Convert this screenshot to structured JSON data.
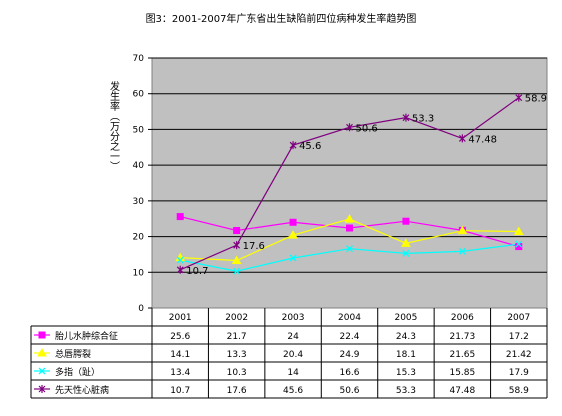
{
  "chart_data": {
    "type": "line",
    "title": "图3：2001-2007年广东省出生缺陷前四位病种发生率趋势图",
    "ylabel": "发生率（万分之一）",
    "xlabel": "",
    "ylim": [
      0,
      70
    ],
    "yticks": [
      "0",
      "10",
      "20",
      "30",
      "40",
      "50",
      "60",
      "70"
    ],
    "grid": true,
    "legend_position": "data-table",
    "categories": [
      "2001",
      "2002",
      "2003",
      "2004",
      "2005",
      "2006",
      "2007"
    ],
    "series": [
      {
        "name": "胎儿水肿综合征",
        "color": "#ff00ff",
        "marker": "square",
        "values": [
          25.6,
          21.7,
          24,
          22.4,
          24.3,
          21.73,
          17.2
        ],
        "labels": [
          "25.6",
          "21.7",
          "24",
          "22.4",
          "24.3",
          "21.73",
          "17.2"
        ]
      },
      {
        "name": "总唇腭裂",
        "color": "#ffff00",
        "marker": "triangle",
        "values": [
          14.1,
          13.3,
          20.4,
          24.9,
          18.1,
          21.65,
          21.42
        ],
        "labels": [
          "14.1",
          "13.3",
          "20.4",
          "24.9",
          "18.1",
          "21.65",
          "21.42"
        ]
      },
      {
        "name": "多指（趾）",
        "color": "#00ffff",
        "marker": "x",
        "values": [
          13.4,
          10.3,
          14,
          16.6,
          15.3,
          15.85,
          17.9
        ],
        "labels": [
          "13.4",
          "10.3",
          "14",
          "16.6",
          "15.3",
          "15.85",
          "17.9"
        ]
      },
      {
        "name": "先天性心脏病",
        "color": "#800080",
        "marker": "star",
        "values": [
          10.7,
          17.6,
          45.6,
          50.6,
          53.3,
          47.48,
          58.9
        ],
        "labels": [
          "10.7",
          "17.6",
          "45.6",
          "50.6",
          "53.3",
          "47.48",
          "58.9"
        ]
      }
    ],
    "data_labels_series": 3,
    "plot_background": "#c0c0c0",
    "grid_color": "#000000"
  }
}
